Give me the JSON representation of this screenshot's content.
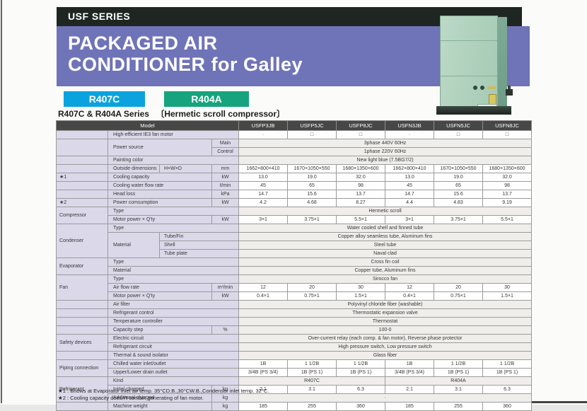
{
  "header": {
    "series_label": "USF SERIES",
    "title_line1": "PACKAGED AIR",
    "title_line2": "CONDITIONER for Galley",
    "badges": [
      {
        "label": "R407C",
        "color": "#0aa3de"
      },
      {
        "label": "R404A",
        "color": "#16a37d"
      }
    ],
    "subtitle": "R407C & R404A Series",
    "subtitle_bracket": "〔Hermetic scroll compressor〕"
  },
  "colors": {
    "banner_black": "#1f2622",
    "banner_purple": "#6f73b7",
    "r407c_badge": "#0aa3de",
    "r404a_badge": "#16a37d",
    "label_bg": "#dbd8e9",
    "header_row_bg": "#474747"
  },
  "table": {
    "models": [
      "USFP3JB",
      "USFP5JC",
      "USFP8JC",
      "USFN3JB",
      "USFN5JC",
      "USFN8JC"
    ],
    "rows": [
      {
        "cells": [
          {
            "t": "Model",
            "k": "h",
            "c": 4,
            "n": "model-column-header"
          },
          {
            "t": "USFP3JB",
            "k": "h",
            "n": "model-name"
          },
          {
            "t": "USFP5JC",
            "k": "h",
            "n": "model-name"
          },
          {
            "t": "USFP8JC",
            "k": "h",
            "n": "model-name"
          },
          {
            "t": "USFN3JB",
            "k": "h",
            "n": "model-name"
          },
          {
            "t": "USFN5JC",
            "k": "h",
            "n": "model-name"
          },
          {
            "t": "USFN8JC",
            "k": "h",
            "n": "model-name"
          }
        ]
      },
      {
        "cells": [
          {
            "t": "",
            "k": "g"
          },
          {
            "t": "High-efficient IE3 fan motor",
            "k": "l",
            "c": 3
          },
          {
            "t": "·",
            "k": "d",
            "n": "dash-marker"
          },
          {
            "t": "□",
            "k": "d",
            "n": "checkbox-icon"
          },
          {
            "t": "□",
            "k": "d",
            "n": "checkbox-icon"
          },
          {
            "t": "·",
            "k": "d",
            "n": "dash-marker"
          },
          {
            "t": "□",
            "k": "d",
            "n": "checkbox-icon"
          },
          {
            "t": "□",
            "k": "d",
            "n": "checkbox-icon"
          }
        ]
      },
      {
        "cells": [
          {
            "t": "",
            "k": "g",
            "r": 2
          },
          {
            "t": "Power source",
            "k": "l",
            "c": 2,
            "r": 2
          },
          {
            "t": "Main",
            "k": "u"
          },
          {
            "t": "3phase 440V 60Hz",
            "k": "m",
            "c": 6
          }
        ]
      },
      {
        "cells": [
          {
            "t": "Control",
            "k": "u"
          },
          {
            "t": "1phase 220V 60Hz",
            "k": "m",
            "c": 6
          }
        ]
      },
      {
        "cells": [
          {
            "t": "",
            "k": "g"
          },
          {
            "t": "Painting color",
            "k": "l",
            "c": 3
          },
          {
            "t": "New light blue (7.5BG7/2)",
            "k": "m",
            "c": 6
          }
        ]
      },
      {
        "cells": [
          {
            "t": "",
            "k": "g"
          },
          {
            "t": "Outside dimensions",
            "k": "l"
          },
          {
            "t": "H×W×D",
            "k": "s"
          },
          {
            "t": "mm",
            "k": "u"
          },
          {
            "t": "1662×800×410",
            "k": "d"
          },
          {
            "t": "1670×1050×550",
            "k": "d"
          },
          {
            "t": "1680×1350×600",
            "k": "d"
          },
          {
            "t": "1662×800×410",
            "k": "d"
          },
          {
            "t": "1670×1050×550",
            "k": "d"
          },
          {
            "t": "1680×1350×600",
            "k": "d"
          }
        ]
      },
      {
        "cells": [
          {
            "t": "★1",
            "k": "g",
            "n": "star-marker"
          },
          {
            "t": "Cooling capacity",
            "k": "l",
            "c": 2
          },
          {
            "t": "kW",
            "k": "u"
          },
          {
            "t": "13.0",
            "k": "d"
          },
          {
            "t": "19.0",
            "k": "d"
          },
          {
            "t": "32.0",
            "k": "d"
          },
          {
            "t": "13.0",
            "k": "d"
          },
          {
            "t": "19.0",
            "k": "d"
          },
          {
            "t": "32.0",
            "k": "d"
          }
        ]
      },
      {
        "cells": [
          {
            "t": "",
            "k": "g"
          },
          {
            "t": "Cooling water flow rate",
            "k": "l",
            "c": 2
          },
          {
            "t": "ℓ/min",
            "k": "u"
          },
          {
            "t": "45",
            "k": "d"
          },
          {
            "t": "65",
            "k": "d"
          },
          {
            "t": "98",
            "k": "d"
          },
          {
            "t": "45",
            "k": "d"
          },
          {
            "t": "65",
            "k": "d"
          },
          {
            "t": "98",
            "k": "d"
          }
        ]
      },
      {
        "cells": [
          {
            "t": "",
            "k": "g"
          },
          {
            "t": "Head loss",
            "k": "l",
            "c": 2
          },
          {
            "t": "kPa",
            "k": "u"
          },
          {
            "t": "14.7",
            "k": "d"
          },
          {
            "t": "15.6",
            "k": "d"
          },
          {
            "t": "13.7",
            "k": "d"
          },
          {
            "t": "14.7",
            "k": "d"
          },
          {
            "t": "15.6",
            "k": "d"
          },
          {
            "t": "13.7",
            "k": "d"
          }
        ]
      },
      {
        "cells": [
          {
            "t": "★2",
            "k": "g",
            "n": "star-marker"
          },
          {
            "t": "Power comsumption",
            "k": "l",
            "c": 2
          },
          {
            "t": "kW",
            "k": "u"
          },
          {
            "t": "4.2",
            "k": "d"
          },
          {
            "t": "4.68",
            "k": "d"
          },
          {
            "t": "8.27",
            "k": "d"
          },
          {
            "t": "4.4",
            "k": "d"
          },
          {
            "t": "4.83",
            "k": "d"
          },
          {
            "t": "9.19",
            "k": "d"
          }
        ]
      },
      {
        "cells": [
          {
            "t": "Compressor",
            "k": "g",
            "r": 2
          },
          {
            "t": "Type",
            "k": "l",
            "c": 3
          },
          {
            "t": "Hermetic scroll",
            "k": "m",
            "c": 6
          }
        ]
      },
      {
        "cells": [
          {
            "t": "Motor power × Q'ty",
            "k": "l",
            "c": 2
          },
          {
            "t": "kW",
            "k": "u"
          },
          {
            "t": "3×1",
            "k": "d"
          },
          {
            "t": "3.75×1",
            "k": "d"
          },
          {
            "t": "5.5×1",
            "k": "d"
          },
          {
            "t": "3×1",
            "k": "d"
          },
          {
            "t": "3.75×1",
            "k": "d"
          },
          {
            "t": "5.5×1",
            "k": "d"
          }
        ]
      },
      {
        "cells": [
          {
            "t": "Condenser",
            "k": "g",
            "r": 4
          },
          {
            "t": "Type",
            "k": "l",
            "c": 3
          },
          {
            "t": "Water cooled shell and finned tube",
            "k": "m",
            "c": 6
          }
        ]
      },
      {
        "cells": [
          {
            "t": "Material",
            "k": "l",
            "r": 3
          },
          {
            "t": "Tube/Fin",
            "k": "s",
            "c": 2
          },
          {
            "t": "Copper alloy seamless tube, Aluminum fins",
            "k": "m",
            "c": 6
          }
        ]
      },
      {
        "cells": [
          {
            "t": "Shell",
            "k": "s",
            "c": 2
          },
          {
            "t": "Steel tube",
            "k": "m",
            "c": 6
          }
        ]
      },
      {
        "cells": [
          {
            "t": "Tube plate",
            "k": "s",
            "c": 2
          },
          {
            "t": "Naval clad",
            "k": "m",
            "c": 6
          }
        ]
      },
      {
        "cells": [
          {
            "t": "Evaporator",
            "k": "g",
            "r": 2
          },
          {
            "t": "Type",
            "k": "l",
            "c": 3
          },
          {
            "t": "Cross fin coil",
            "k": "m",
            "c": 6
          }
        ]
      },
      {
        "cells": [
          {
            "t": "Material",
            "k": "l",
            "c": 3
          },
          {
            "t": "Copper tube, Aluminum fins",
            "k": "m",
            "c": 6
          }
        ]
      },
      {
        "cells": [
          {
            "t": "Fan",
            "k": "g",
            "r": 3
          },
          {
            "t": "Type",
            "k": "l",
            "c": 3
          },
          {
            "t": "Sirocco fan",
            "k": "m",
            "c": 6
          }
        ]
      },
      {
        "cells": [
          {
            "t": "Air flow rate",
            "k": "l",
            "c": 2
          },
          {
            "t": "m³/min",
            "k": "u"
          },
          {
            "t": "12",
            "k": "d"
          },
          {
            "t": "20",
            "k": "d"
          },
          {
            "t": "30",
            "k": "d"
          },
          {
            "t": "12",
            "k": "d"
          },
          {
            "t": "20",
            "k": "d"
          },
          {
            "t": "30",
            "k": "d"
          }
        ]
      },
      {
        "cells": [
          {
            "t": "Motor power × Q'ty",
            "k": "l",
            "c": 2
          },
          {
            "t": "kW",
            "k": "u"
          },
          {
            "t": "0.4×1",
            "k": "d"
          },
          {
            "t": "0.75×1",
            "k": "d"
          },
          {
            "t": "1.5×1",
            "k": "d"
          },
          {
            "t": "0.4×1",
            "k": "d"
          },
          {
            "t": "0.75×1",
            "k": "d"
          },
          {
            "t": "1.5×1",
            "k": "d"
          }
        ]
      },
      {
        "cells": [
          {
            "t": "",
            "k": "g"
          },
          {
            "t": "Air filter",
            "k": "l",
            "c": 3
          },
          {
            "t": "Polyvinyl chloride fiber (washable)",
            "k": "m",
            "c": 6
          }
        ]
      },
      {
        "cells": [
          {
            "t": "",
            "k": "g"
          },
          {
            "t": "Refrigerant control",
            "k": "l",
            "c": 3
          },
          {
            "t": "Thermostatic expansion valve",
            "k": "m",
            "c": 6
          }
        ]
      },
      {
        "cells": [
          {
            "t": "",
            "k": "g"
          },
          {
            "t": "Temperature controller",
            "k": "l",
            "c": 3
          },
          {
            "t": "Thermostat",
            "k": "m",
            "c": 6
          }
        ]
      },
      {
        "cells": [
          {
            "t": "",
            "k": "g"
          },
          {
            "t": "Capacity step",
            "k": "l",
            "c": 2
          },
          {
            "t": "%",
            "k": "u"
          },
          {
            "t": "100-0",
            "k": "m",
            "c": 6
          }
        ]
      },
      {
        "cells": [
          {
            "t": "Safety devices",
            "k": "g",
            "r": 2
          },
          {
            "t": "Electric circuit",
            "k": "l",
            "c": 3
          },
          {
            "t": "Over-current relay (each comp. & fan motor), Reverse phase protector",
            "k": "m",
            "c": 6
          }
        ]
      },
      {
        "cells": [
          {
            "t": "Refrigerant circuit",
            "k": "l",
            "c": 3
          },
          {
            "t": "High pressure switch,  Low pressure switch",
            "k": "m",
            "c": 6
          }
        ]
      },
      {
        "cells": [
          {
            "t": "",
            "k": "g"
          },
          {
            "t": "Thermal & sound isolator",
            "k": "l",
            "c": 3
          },
          {
            "t": "Glass fiber",
            "k": "m",
            "c": 6
          }
        ]
      },
      {
        "cells": [
          {
            "t": "Piping connection",
            "k": "g",
            "r": 2
          },
          {
            "t": "Chilled water inlet/outlet",
            "k": "l",
            "c": 3
          },
          {
            "t": "1B",
            "k": "d"
          },
          {
            "t": "1 1/2B",
            "k": "d"
          },
          {
            "t": "1 1/2B",
            "k": "d"
          },
          {
            "t": "1B",
            "k": "d"
          },
          {
            "t": "1 1/2B",
            "k": "d"
          },
          {
            "t": "1 1/2B",
            "k": "d"
          }
        ]
      },
      {
        "cells": [
          {
            "t": "Upper/Lower drain outlet",
            "k": "l",
            "c": 3
          },
          {
            "t": "3/4B (PS 3/4)",
            "k": "d"
          },
          {
            "t": "1B (PS 1)",
            "k": "d"
          },
          {
            "t": "1B (PS 1)",
            "k": "d"
          },
          {
            "t": "3/4B (PS 3/4)",
            "k": "d"
          },
          {
            "t": "1B (PS 1)",
            "k": "d"
          },
          {
            "t": "1B (PS 1)",
            "k": "d"
          }
        ]
      },
      {
        "cells": [
          {
            "t": "Refrigerant",
            "k": "g",
            "r": 3
          },
          {
            "t": "Kind",
            "k": "l",
            "c": 3
          },
          {
            "t": "R407C",
            "k": "m",
            "c": 3
          },
          {
            "t": "R404A",
            "k": "m",
            "c": 3
          }
        ]
      },
      {
        "cells": [
          {
            "t": "Initial charged",
            "k": "l",
            "c": 2
          },
          {
            "t": "kg",
            "k": "u"
          },
          {
            "t": "2.1",
            "k": "d"
          },
          {
            "t": "3.1",
            "k": "d"
          },
          {
            "t": "6.3",
            "k": "d"
          },
          {
            "t": "2.1",
            "k": "d"
          },
          {
            "t": "3.1",
            "k": "d"
          },
          {
            "t": "6.3",
            "k": "d"
          }
        ]
      },
      {
        "cells": [
          {
            "t": "Additional charged",
            "k": "l",
            "c": 2
          },
          {
            "t": "kg",
            "k": "u"
          },
          {
            "t": "·",
            "k": "m",
            "c": 6,
            "n": "dash-marker"
          }
        ]
      },
      {
        "cells": [
          {
            "t": "",
            "k": "g"
          },
          {
            "t": "Machine weight",
            "k": "l",
            "c": 2
          },
          {
            "t": "kg",
            "k": "u"
          },
          {
            "t": "185",
            "k": "d"
          },
          {
            "t": "255",
            "k": "d"
          },
          {
            "t": "360",
            "k": "d"
          },
          {
            "t": "185",
            "k": "d"
          },
          {
            "t": "255",
            "k": "d"
          },
          {
            "t": "360",
            "k": "d"
          }
        ]
      }
    ]
  },
  "footnotes": [
    "★1 : Shows at Evaporator inlet air temp. 35°CD.B.,30°CW.B.,Condenser inlet temp. 32°C.",
    "★2 : Cooling capacity doesn't contain  generating of fan motor."
  ]
}
